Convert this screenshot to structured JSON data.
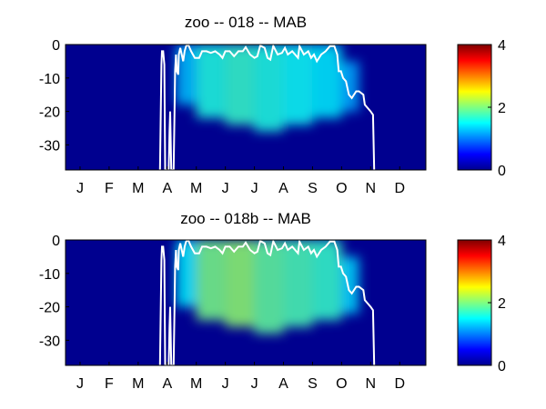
{
  "colors": {
    "background": "#ffffff",
    "plot_base": "#00008f",
    "contour_line": "#ffffff",
    "colormap": "jet"
  },
  "chart_data": [
    {
      "type": "heatmap",
      "title": "zoo -- 018 -- MAB",
      "x_tick_labels": [
        "J",
        "F",
        "M",
        "A",
        "M",
        "J",
        "J",
        "A",
        "S",
        "O",
        "N",
        "D"
      ],
      "x_tick_positions": [
        1,
        2,
        3,
        4,
        5,
        6,
        7,
        8,
        9,
        10,
        11,
        12
      ],
      "xlim": [
        0.5,
        12.9
      ],
      "y_tick_values": [
        0,
        -10,
        -20,
        -30
      ],
      "y_tick_labels": [
        "0",
        "-10",
        "-20",
        "-30"
      ],
      "ylim": [
        -37.5,
        0
      ],
      "colorbar": {
        "ticks": [
          0,
          2,
          4
        ],
        "tick_labels": [
          "0",
          "2",
          "4"
        ],
        "range": [
          0,
          4
        ]
      },
      "intensity_envelope": [
        {
          "x": 4.3,
          "depth_top": 0,
          "depth_bottom": -18,
          "value": 0.6
        },
        {
          "x": 5.0,
          "depth_top": 0,
          "depth_bottom": -22,
          "value": 1.0
        },
        {
          "x": 6.0,
          "depth_top": 0,
          "depth_bottom": -24,
          "value": 1.1
        },
        {
          "x": 7.0,
          "depth_top": 0,
          "depth_bottom": -26,
          "value": 1.0
        },
        {
          "x": 8.0,
          "depth_top": 0,
          "depth_bottom": -24,
          "value": 0.9
        },
        {
          "x": 9.0,
          "depth_top": 0,
          "depth_bottom": -22,
          "value": 0.8
        },
        {
          "x": 10.0,
          "depth_top": -5,
          "depth_bottom": -20,
          "value": 0.5
        }
      ],
      "contour": [
        [
          3.75,
          -37.5
        ],
        [
          3.8,
          -6
        ],
        [
          3.82,
          -2
        ],
        [
          3.86,
          -2
        ],
        [
          3.9,
          -6
        ],
        [
          3.93,
          -37.5
        ],
        [
          4.05,
          -37.5
        ],
        [
          4.08,
          -26
        ],
        [
          4.1,
          -20
        ],
        [
          4.14,
          -37.5
        ],
        [
          4.22,
          -37.5
        ],
        [
          4.25,
          -20
        ],
        [
          4.27,
          -8
        ],
        [
          4.3,
          -3
        ],
        [
          4.33,
          -8
        ],
        [
          4.38,
          -9
        ],
        [
          4.4,
          -3
        ],
        [
          4.45,
          -1
        ],
        [
          4.5,
          -3
        ],
        [
          4.55,
          -5
        ],
        [
          4.6,
          -2
        ],
        [
          4.65,
          -0.5
        ],
        [
          4.72,
          0
        ],
        [
          4.82,
          -2
        ],
        [
          4.95,
          -4
        ],
        [
          5.1,
          -4
        ],
        [
          5.2,
          -2
        ],
        [
          5.35,
          -2
        ],
        [
          5.5,
          -2.5
        ],
        [
          5.65,
          -2
        ],
        [
          5.8,
          -3
        ],
        [
          5.9,
          -4
        ],
        [
          6.0,
          -2
        ],
        [
          6.15,
          -2
        ],
        [
          6.3,
          -3.5
        ],
        [
          6.45,
          -2
        ],
        [
          6.6,
          -2
        ],
        [
          6.7,
          -0.8
        ],
        [
          6.85,
          -3
        ],
        [
          7.0,
          -4
        ],
        [
          7.1,
          -3.5
        ],
        [
          7.2,
          -0.3
        ],
        [
          7.35,
          -1
        ],
        [
          7.45,
          -4
        ],
        [
          7.55,
          -4.5
        ],
        [
          7.65,
          -0.4
        ],
        [
          7.8,
          -3
        ],
        [
          7.95,
          -2.5
        ],
        [
          8.05,
          -1
        ],
        [
          8.15,
          -3
        ],
        [
          8.3,
          -2
        ],
        [
          8.5,
          -4
        ],
        [
          8.55,
          -0.5
        ],
        [
          8.7,
          -3
        ],
        [
          8.85,
          -2
        ],
        [
          8.95,
          -4
        ],
        [
          9.05,
          -3
        ],
        [
          9.15,
          -5
        ],
        [
          9.3,
          -3
        ],
        [
          9.45,
          -2
        ],
        [
          9.6,
          -0.5
        ],
        [
          9.75,
          -0.5
        ],
        [
          9.85,
          -3
        ],
        [
          9.9,
          -8
        ],
        [
          9.98,
          -8
        ],
        [
          10.05,
          -10
        ],
        [
          10.15,
          -11
        ],
        [
          10.25,
          -15
        ],
        [
          10.35,
          -16
        ],
        [
          10.5,
          -14
        ],
        [
          10.6,
          -14
        ],
        [
          10.75,
          -15
        ],
        [
          10.8,
          -18
        ],
        [
          10.9,
          -19
        ],
        [
          11.0,
          -20
        ],
        [
          11.08,
          -21
        ],
        [
          11.12,
          -37.5
        ]
      ]
    },
    {
      "type": "heatmap",
      "title": "zoo -- 018b -- MAB",
      "x_tick_labels": [
        "J",
        "F",
        "M",
        "A",
        "M",
        "J",
        "J",
        "A",
        "S",
        "O",
        "N",
        "D"
      ],
      "x_tick_positions": [
        1,
        2,
        3,
        4,
        5,
        6,
        7,
        8,
        9,
        10,
        11,
        12
      ],
      "xlim": [
        0.5,
        12.9
      ],
      "y_tick_values": [
        0,
        -10,
        -20,
        -30
      ],
      "y_tick_labels": [
        "0",
        "-10",
        "-20",
        "-30"
      ],
      "ylim": [
        -37.5,
        0
      ],
      "colorbar": {
        "ticks": [
          0,
          2,
          4
        ],
        "tick_labels": [
          "0",
          "2",
          "4"
        ],
        "range": [
          0,
          4
        ]
      },
      "intensity_envelope": [
        {
          "x": 4.3,
          "depth_top": 0,
          "depth_bottom": -20,
          "value": 0.8
        },
        {
          "x": 5.0,
          "depth_top": 0,
          "depth_bottom": -24,
          "value": 1.4
        },
        {
          "x": 6.0,
          "depth_top": 0,
          "depth_bottom": -26,
          "value": 1.5
        },
        {
          "x": 7.0,
          "depth_top": 0,
          "depth_bottom": -28,
          "value": 1.3
        },
        {
          "x": 8.0,
          "depth_top": 0,
          "depth_bottom": -26,
          "value": 1.2
        },
        {
          "x": 9.0,
          "depth_top": 0,
          "depth_bottom": -24,
          "value": 1.1
        },
        {
          "x": 10.0,
          "depth_top": -5,
          "depth_bottom": -22,
          "value": 0.7
        }
      ],
      "contour": [
        [
          3.75,
          -37.5
        ],
        [
          3.8,
          -6
        ],
        [
          3.82,
          -2
        ],
        [
          3.86,
          -2
        ],
        [
          3.9,
          -6
        ],
        [
          3.93,
          -37.5
        ],
        [
          4.05,
          -37.5
        ],
        [
          4.08,
          -26
        ],
        [
          4.1,
          -20
        ],
        [
          4.14,
          -37.5
        ],
        [
          4.22,
          -37.5
        ],
        [
          4.25,
          -20
        ],
        [
          4.27,
          -8
        ],
        [
          4.3,
          -3
        ],
        [
          4.33,
          -8
        ],
        [
          4.38,
          -9
        ],
        [
          4.4,
          -3
        ],
        [
          4.45,
          -1
        ],
        [
          4.5,
          -3
        ],
        [
          4.55,
          -5
        ],
        [
          4.6,
          -2
        ],
        [
          4.65,
          -0.5
        ],
        [
          4.72,
          0
        ],
        [
          4.82,
          -2
        ],
        [
          4.95,
          -4
        ],
        [
          5.1,
          -4
        ],
        [
          5.2,
          -2
        ],
        [
          5.35,
          -2
        ],
        [
          5.5,
          -2.5
        ],
        [
          5.65,
          -2
        ],
        [
          5.8,
          -3
        ],
        [
          5.9,
          -4
        ],
        [
          6.0,
          -2
        ],
        [
          6.15,
          -2
        ],
        [
          6.3,
          -3.5
        ],
        [
          6.45,
          -2
        ],
        [
          6.6,
          -2
        ],
        [
          6.7,
          -0.8
        ],
        [
          6.85,
          -3
        ],
        [
          7.0,
          -4
        ],
        [
          7.1,
          -3.5
        ],
        [
          7.2,
          -0.3
        ],
        [
          7.35,
          -1
        ],
        [
          7.45,
          -4
        ],
        [
          7.55,
          -4.5
        ],
        [
          7.65,
          -0.4
        ],
        [
          7.8,
          -3
        ],
        [
          7.95,
          -2.5
        ],
        [
          8.05,
          -1
        ],
        [
          8.15,
          -3
        ],
        [
          8.3,
          -2
        ],
        [
          8.5,
          -4
        ],
        [
          8.55,
          -0.5
        ],
        [
          8.7,
          -3
        ],
        [
          8.85,
          -2
        ],
        [
          8.95,
          -4
        ],
        [
          9.05,
          -3
        ],
        [
          9.15,
          -5
        ],
        [
          9.3,
          -3
        ],
        [
          9.45,
          -2
        ],
        [
          9.6,
          -0.5
        ],
        [
          9.75,
          -0.5
        ],
        [
          9.85,
          -3
        ],
        [
          9.9,
          -8
        ],
        [
          9.98,
          -8
        ],
        [
          10.05,
          -10
        ],
        [
          10.15,
          -11
        ],
        [
          10.25,
          -15
        ],
        [
          10.35,
          -16
        ],
        [
          10.5,
          -14
        ],
        [
          10.6,
          -14
        ],
        [
          10.75,
          -15
        ],
        [
          10.8,
          -18
        ],
        [
          10.9,
          -19
        ],
        [
          11.0,
          -20
        ],
        [
          11.08,
          -21
        ],
        [
          11.12,
          -37.5
        ]
      ]
    }
  ]
}
